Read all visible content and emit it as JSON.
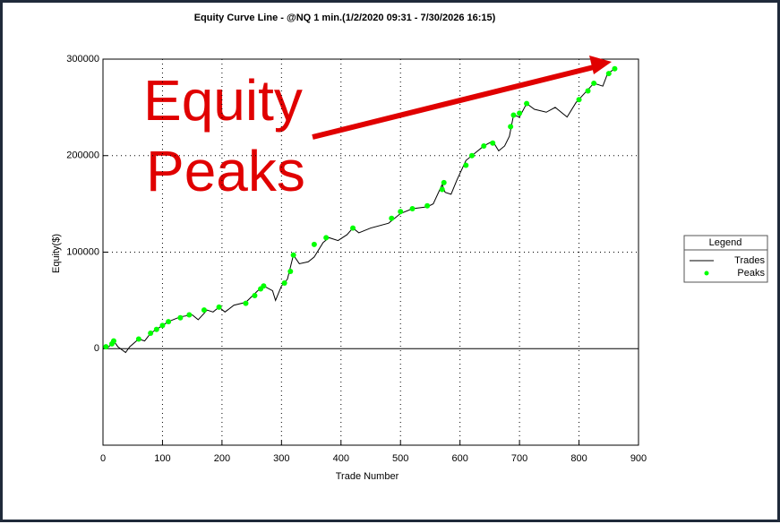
{
  "chart_data": {
    "type": "line",
    "title": "Equity Curve Line - @NQ 1 min.(1/2/2020 09:31 - 7/30/2026 16:15)",
    "x_label": "Trade Number",
    "y_label": "Equity($)",
    "annotation_lines": [
      "Equity",
      "Peaks"
    ],
    "legend_title": "Legend",
    "legend_position": "right",
    "grid": true,
    "xlim": [
      0,
      900
    ],
    "xticks": [
      0,
      100,
      200,
      300,
      400,
      500,
      600,
      700,
      800,
      900
    ],
    "ylim": [
      -100000,
      300000
    ],
    "yticks": [
      0,
      100000,
      200000,
      300000
    ],
    "series": [
      {
        "name": "Trades",
        "type": "line",
        "color": "#000000",
        "x": [
          0,
          10,
          18,
          25,
          38,
          45,
          60,
          70,
          80,
          95,
          110,
          130,
          150,
          160,
          175,
          185,
          195,
          205,
          220,
          240,
          260,
          270,
          285,
          290,
          300,
          310,
          320,
          330,
          345,
          355,
          370,
          380,
          395,
          410,
          420,
          430,
          450,
          480,
          500,
          520,
          545,
          555,
          570,
          575,
          585,
          595,
          610,
          620,
          640,
          655,
          665,
          675,
          683,
          690,
          700,
          712,
          725,
          745,
          760,
          780,
          795,
          810,
          825,
          840,
          848,
          860
        ],
        "values": [
          0,
          2000,
          8000,
          2000,
          -4000,
          2000,
          10000,
          8000,
          16000,
          22000,
          28000,
          33000,
          35000,
          30000,
          40000,
          38000,
          43000,
          38000,
          45000,
          48000,
          60000,
          65000,
          60000,
          50000,
          65000,
          72000,
          97000,
          88000,
          90000,
          95000,
          110000,
          115000,
          112000,
          118000,
          125000,
          120000,
          125000,
          130000,
          140000,
          145000,
          147000,
          150000,
          170000,
          162000,
          160000,
          175000,
          195000,
          200000,
          210000,
          215000,
          205000,
          210000,
          220000,
          242000,
          240000,
          254000,
          248000,
          245000,
          250000,
          240000,
          255000,
          265000,
          275000,
          272000,
          285000,
          290000
        ]
      },
      {
        "name": "Peaks",
        "type": "scatter",
        "color": "#00ff00",
        "x": [
          5,
          15,
          18,
          60,
          80,
          90,
          100,
          110,
          130,
          145,
          170,
          195,
          240,
          255,
          265,
          270,
          305,
          315,
          320,
          355,
          375,
          420,
          485,
          500,
          520,
          545,
          570,
          573,
          610,
          620,
          640,
          655,
          685,
          690,
          700,
          712,
          800,
          815,
          825,
          850,
          860
        ],
        "values": [
          2000,
          5000,
          8000,
          10000,
          16000,
          20000,
          24000,
          28000,
          32000,
          35000,
          40000,
          43000,
          47000,
          55000,
          62000,
          65000,
          68000,
          80000,
          97000,
          108000,
          115000,
          125000,
          135000,
          142000,
          145000,
          148000,
          165000,
          172000,
          190000,
          200000,
          210000,
          213000,
          230000,
          242000,
          244000,
          254000,
          258000,
          267000,
          275000,
          285000,
          290000
        ]
      }
    ]
  }
}
